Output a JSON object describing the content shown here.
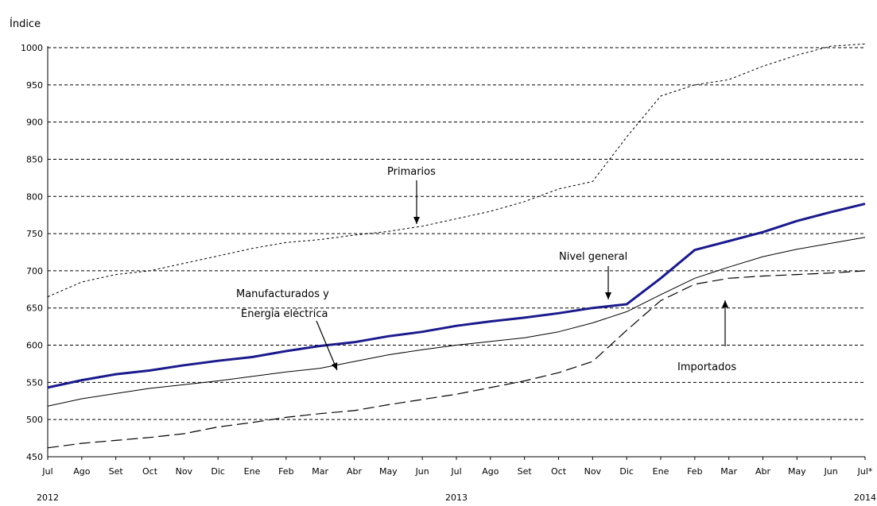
{
  "chart_data": {
    "type": "line",
    "ylabel": "Índice",
    "ylim": [
      450,
      1000
    ],
    "yticks": [
      1000,
      950,
      900,
      850,
      800,
      750,
      700,
      650,
      600,
      550,
      500,
      450
    ],
    "grid": true,
    "categories": [
      "Jul",
      "Ago",
      "Set",
      "Oct",
      "Nov",
      "Dic",
      "Ene",
      "Feb",
      "Mar",
      "Abr",
      "May",
      "Jun",
      "Jul",
      "Ago",
      "Set",
      "Oct",
      "Nov",
      "Dic",
      "Ene",
      "Feb",
      "Mar",
      "Abr",
      "May",
      "Jun",
      "Jul*"
    ],
    "year_labels": [
      {
        "label": "2012",
        "category_index": 0
      },
      {
        "label": "2013",
        "category_index": 12
      },
      {
        "label": "2014",
        "category_index": 24
      }
    ],
    "series": [
      {
        "name": "Nivel general",
        "color": "#1a1a8c",
        "style": "solid-thick",
        "values": [
          543,
          553,
          561,
          566,
          573,
          579,
          584,
          592,
          599,
          604,
          612,
          618,
          626,
          632,
          637,
          643,
          650,
          655,
          690,
          728,
          740,
          752,
          767,
          779,
          790
        ]
      },
      {
        "name": "Primarios",
        "color": "#000000",
        "style": "short-dash",
        "values": [
          665,
          685,
          695,
          700,
          710,
          720,
          730,
          738,
          742,
          748,
          753,
          760,
          770,
          780,
          793,
          810,
          820,
          880,
          935,
          950,
          957,
          975,
          990,
          1002,
          1005
        ]
      },
      {
        "name": "Manufacturados y Energía eléctrica",
        "color": "#000000",
        "style": "solid-thin",
        "values": [
          518,
          528,
          535,
          542,
          547,
          552,
          558,
          564,
          569,
          578,
          587,
          594,
          600,
          605,
          610,
          618,
          630,
          645,
          668,
          690,
          705,
          719,
          729,
          737,
          745
        ]
      },
      {
        "name": "Importados",
        "color": "#000000",
        "style": "long-dash",
        "values": [
          462,
          468,
          472,
          476,
          481,
          490,
          496,
          503,
          508,
          512,
          520,
          527,
          534,
          543,
          552,
          563,
          578,
          620,
          660,
          682,
          690,
          693,
          695,
          697,
          700
        ]
      }
    ],
    "annotations": [
      {
        "text": "Primarios"
      },
      {
        "text": "Nivel general"
      },
      {
        "text": "Manufacturados y"
      },
      {
        "text": "Energía eléctrica"
      },
      {
        "text": "Importados"
      }
    ]
  }
}
